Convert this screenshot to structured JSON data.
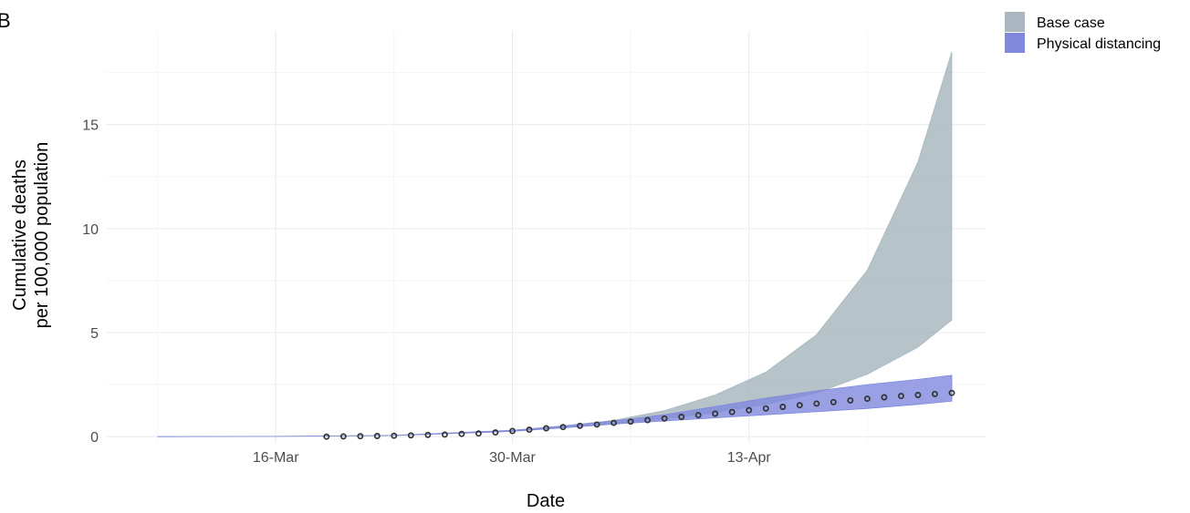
{
  "panel_label": "B",
  "chart_data": {
    "type": "area",
    "xlabel": "Date",
    "ylabel_lines": [
      "Cumulative deaths",
      "per 100,000 population"
    ],
    "x_ticks": [
      "16-Mar",
      "30-Mar",
      "13-Apr"
    ],
    "y_ticks": [
      "0",
      "5",
      "10",
      "15"
    ],
    "xlim": [
      "2020-03-06",
      "2020-04-27"
    ],
    "ylim": [
      -0.3,
      19.5
    ],
    "grid": true,
    "legend_position": "top-right",
    "series": [
      {
        "name": "Base case",
        "color": "#a9b8c0",
        "x": [
          "2020-03-09",
          "2020-03-16",
          "2020-03-23",
          "2020-03-30",
          "2020-04-02",
          "2020-04-05",
          "2020-04-08",
          "2020-04-11",
          "2020-04-14",
          "2020-04-17",
          "2020-04-20",
          "2020-04-23",
          "2020-04-25"
        ],
        "lower": [
          0,
          0.01,
          0.05,
          0.25,
          0.45,
          0.62,
          0.85,
          1.15,
          1.55,
          2.1,
          3.0,
          4.3,
          5.6
        ],
        "upper": [
          0,
          0.01,
          0.06,
          0.3,
          0.52,
          0.78,
          1.25,
          2.0,
          3.1,
          4.9,
          8.0,
          13.2,
          18.5
        ]
      },
      {
        "name": "Physical distancing",
        "color": "#7f88dd",
        "x": [
          "2020-03-09",
          "2020-03-16",
          "2020-03-23",
          "2020-03-30",
          "2020-04-02",
          "2020-04-05",
          "2020-04-08",
          "2020-04-11",
          "2020-04-14",
          "2020-04-17",
          "2020-04-20",
          "2020-04-23",
          "2020-04-25"
        ],
        "lower": [
          0,
          0.01,
          0.05,
          0.25,
          0.42,
          0.6,
          0.75,
          0.9,
          1.05,
          1.2,
          1.35,
          1.55,
          1.7
        ],
        "upper": [
          0,
          0.01,
          0.06,
          0.3,
          0.5,
          0.75,
          1.05,
          1.45,
          1.85,
          2.2,
          2.5,
          2.75,
          2.95
        ]
      }
    ],
    "observed": {
      "x": [
        "2020-03-19",
        "2020-03-20",
        "2020-03-21",
        "2020-03-22",
        "2020-03-23",
        "2020-03-24",
        "2020-03-25",
        "2020-03-26",
        "2020-03-27",
        "2020-03-28",
        "2020-03-29",
        "2020-03-30",
        "2020-03-31",
        "2020-04-01",
        "2020-04-02",
        "2020-04-03",
        "2020-04-04",
        "2020-04-05",
        "2020-04-06",
        "2020-04-07",
        "2020-04-08",
        "2020-04-09",
        "2020-04-10",
        "2020-04-11",
        "2020-04-12",
        "2020-04-13",
        "2020-04-14",
        "2020-04-15",
        "2020-04-16",
        "2020-04-17",
        "2020-04-18",
        "2020-04-19",
        "2020-04-20",
        "2020-04-21",
        "2020-04-22",
        "2020-04-23",
        "2020-04-24",
        "2020-04-25"
      ],
      "y": [
        0.0,
        0.01,
        0.02,
        0.03,
        0.04,
        0.06,
        0.08,
        0.1,
        0.13,
        0.15,
        0.2,
        0.27,
        0.33,
        0.4,
        0.46,
        0.52,
        0.58,
        0.66,
        0.72,
        0.79,
        0.87,
        0.95,
        1.03,
        1.1,
        1.18,
        1.27,
        1.35,
        1.43,
        1.51,
        1.59,
        1.66,
        1.74,
        1.82,
        1.89,
        1.95,
        2.0,
        2.05,
        2.1
      ]
    }
  }
}
